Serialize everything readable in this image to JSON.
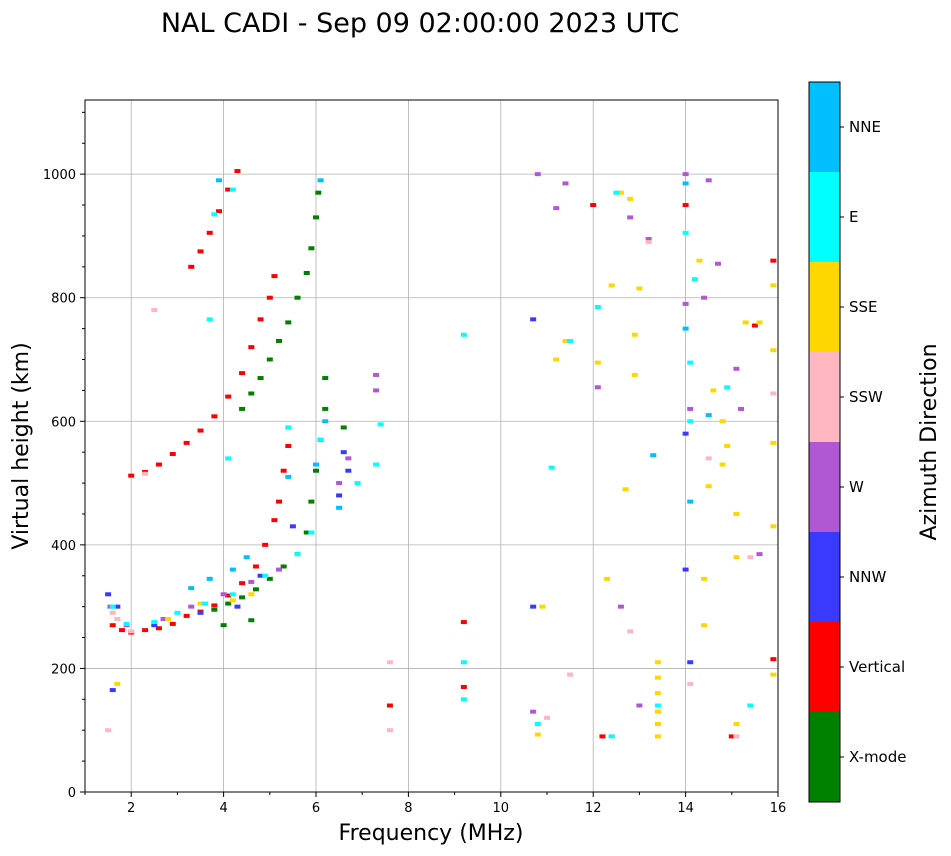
{
  "chart_data": {
    "type": "scatter",
    "title": "NAL CADI - Sep 09 02:00:00 2023 UTC",
    "xlabel": "Frequency (MHz)",
    "ylabel": "Virtual height (km)",
    "xlim": [
      1,
      16
    ],
    "ylim": [
      0,
      1120
    ],
    "xticks": [
      2,
      4,
      6,
      8,
      10,
      12,
      14,
      16
    ],
    "yticks": [
      0,
      200,
      400,
      600,
      800,
      1000
    ],
    "grid": true,
    "colorbar": {
      "label": "Azimuth Direction",
      "categories": [
        {
          "name": "X-mode",
          "color": "#008000"
        },
        {
          "name": "Vertical",
          "color": "#ff0000"
        },
        {
          "name": "NNW",
          "color": "#3a3aff"
        },
        {
          "name": "W",
          "color": "#b057d4"
        },
        {
          "name": "SSW",
          "color": "#ffb6c1"
        },
        {
          "name": "SSE",
          "color": "#ffd700"
        },
        {
          "name": "E",
          "color": "#00ffff"
        },
        {
          "name": "NNE",
          "color": "#00bfff"
        }
      ]
    },
    "series": [
      {
        "name": "Vertical",
        "points": [
          [
            1.6,
            270
          ],
          [
            1.8,
            262
          ],
          [
            2.0,
            258
          ],
          [
            2.3,
            262
          ],
          [
            2.6,
            265
          ],
          [
            2.9,
            272
          ],
          [
            3.2,
            285
          ],
          [
            3.5,
            292
          ],
          [
            3.8,
            302
          ],
          [
            4.1,
            318
          ],
          [
            4.4,
            338
          ],
          [
            4.7,
            365
          ],
          [
            4.9,
            400
          ],
          [
            5.1,
            440
          ],
          [
            5.2,
            470
          ],
          [
            5.3,
            520
          ],
          [
            5.4,
            560
          ],
          [
            2.0,
            512
          ],
          [
            2.3,
            518
          ],
          [
            2.6,
            530
          ],
          [
            2.9,
            547
          ],
          [
            3.2,
            565
          ],
          [
            3.5,
            585
          ],
          [
            3.8,
            608
          ],
          [
            4.1,
            640
          ],
          [
            4.4,
            678
          ],
          [
            4.6,
            720
          ],
          [
            4.8,
            765
          ],
          [
            5.0,
            800
          ],
          [
            5.1,
            835
          ],
          [
            3.3,
            850
          ],
          [
            3.5,
            875
          ],
          [
            3.7,
            905
          ],
          [
            3.9,
            940
          ],
          [
            4.1,
            975
          ],
          [
            4.3,
            1005
          ],
          [
            7.6,
            140
          ],
          [
            9.2,
            275
          ],
          [
            9.2,
            170
          ],
          [
            12.2,
            90
          ],
          [
            15.0,
            90
          ],
          [
            15.9,
            215
          ],
          [
            15.9,
            860
          ],
          [
            15.5,
            755
          ],
          [
            14.0,
            950
          ],
          [
            12.0,
            950
          ]
        ]
      },
      {
        "name": "X-mode",
        "points": [
          [
            3.8,
            295
          ],
          [
            4.1,
            305
          ],
          [
            4.4,
            315
          ],
          [
            4.7,
            328
          ],
          [
            5.0,
            345
          ],
          [
            5.3,
            365
          ],
          [
            5.6,
            385
          ],
          [
            5.8,
            420
          ],
          [
            5.9,
            470
          ],
          [
            6.0,
            520
          ],
          [
            6.1,
            570
          ],
          [
            6.2,
            620
          ],
          [
            6.2,
            670
          ],
          [
            4.4,
            620
          ],
          [
            4.6,
            645
          ],
          [
            4.8,
            670
          ],
          [
            5.0,
            700
          ],
          [
            5.2,
            730
          ],
          [
            5.4,
            760
          ],
          [
            5.6,
            800
          ],
          [
            5.8,
            840
          ],
          [
            5.9,
            880
          ],
          [
            6.0,
            930
          ],
          [
            6.05,
            970
          ],
          [
            4.0,
            270
          ],
          [
            4.6,
            278
          ],
          [
            6.6,
            590
          ]
        ]
      },
      {
        "name": "NNW",
        "points": [
          [
            1.5,
            320
          ],
          [
            1.6,
            165
          ],
          [
            1.7,
            300
          ],
          [
            2.5,
            270
          ],
          [
            3.5,
            290
          ],
          [
            4.3,
            300
          ],
          [
            4.8,
            350
          ],
          [
            5.5,
            430
          ],
          [
            6.5,
            480
          ],
          [
            6.7,
            520
          ],
          [
            6.6,
            550
          ],
          [
            10.7,
            300
          ],
          [
            10.7,
            765
          ],
          [
            14.0,
            580
          ],
          [
            14.1,
            210
          ],
          [
            14.0,
            360
          ]
        ]
      },
      {
        "name": "W",
        "points": [
          [
            1.55,
            300
          ],
          [
            1.9,
            270
          ],
          [
            2.7,
            280
          ],
          [
            3.3,
            300
          ],
          [
            4.0,
            320
          ],
          [
            4.6,
            340
          ],
          [
            5.2,
            360
          ],
          [
            6.5,
            500
          ],
          [
            6.7,
            540
          ],
          [
            7.3,
            675
          ],
          [
            7.3,
            650
          ],
          [
            10.7,
            130
          ],
          [
            10.8,
            1000
          ],
          [
            11.2,
            945
          ],
          [
            11.4,
            985
          ],
          [
            12.1,
            655
          ],
          [
            12.6,
            300
          ],
          [
            12.8,
            930
          ],
          [
            13.0,
            140
          ],
          [
            13.2,
            895
          ],
          [
            14.0,
            790
          ],
          [
            14.1,
            620
          ],
          [
            14.4,
            800
          ],
          [
            14.5,
            990
          ],
          [
            14.7,
            855
          ],
          [
            15.1,
            685
          ],
          [
            15.2,
            620
          ],
          [
            15.6,
            385
          ],
          [
            14.0,
            1000
          ]
        ]
      },
      {
        "name": "SSW",
        "points": [
          [
            1.5,
            100
          ],
          [
            1.6,
            290
          ],
          [
            1.7,
            280
          ],
          [
            2.0,
            260
          ],
          [
            2.3,
            515
          ],
          [
            2.5,
            780
          ],
          [
            7.6,
            210
          ],
          [
            7.6,
            100
          ],
          [
            11.0,
            120
          ],
          [
            11.5,
            190
          ],
          [
            12.4,
            90
          ],
          [
            12.8,
            260
          ],
          [
            13.2,
            890
          ],
          [
            14.1,
            175
          ],
          [
            14.5,
            540
          ],
          [
            15.1,
            90
          ],
          [
            15.4,
            380
          ],
          [
            15.9,
            645
          ]
        ]
      },
      {
        "name": "SSE",
        "points": [
          [
            1.7,
            175
          ],
          [
            2.8,
            280
          ],
          [
            3.5,
            305
          ],
          [
            4.2,
            310
          ],
          [
            4.6,
            320
          ],
          [
            10.9,
            300
          ],
          [
            10.8,
            93
          ],
          [
            11.2,
            700
          ],
          [
            11.4,
            730
          ],
          [
            12.1,
            695
          ],
          [
            12.3,
            345
          ],
          [
            12.4,
            820
          ],
          [
            12.6,
            970
          ],
          [
            12.7,
            490
          ],
          [
            12.8,
            960
          ],
          [
            13.0,
            815
          ],
          [
            12.9,
            740
          ],
          [
            12.9,
            675
          ],
          [
            13.3,
            545
          ],
          [
            13.4,
            90
          ],
          [
            13.4,
            110
          ],
          [
            13.4,
            130
          ],
          [
            13.4,
            160
          ],
          [
            13.4,
            185
          ],
          [
            13.4,
            210
          ],
          [
            14.3,
            860
          ],
          [
            14.4,
            270
          ],
          [
            14.4,
            345
          ],
          [
            14.5,
            495
          ],
          [
            14.6,
            650
          ],
          [
            14.8,
            530
          ],
          [
            14.8,
            600
          ],
          [
            14.9,
            560
          ],
          [
            15.1,
            450
          ],
          [
            15.1,
            380
          ],
          [
            15.1,
            110
          ],
          [
            15.3,
            760
          ],
          [
            15.6,
            760
          ],
          [
            15.9,
            430
          ],
          [
            15.9,
            565
          ],
          [
            15.9,
            715
          ],
          [
            15.9,
            820
          ],
          [
            15.9,
            190
          ]
        ]
      },
      {
        "name": "E",
        "points": [
          [
            1.6,
            300
          ],
          [
            1.9,
            272
          ],
          [
            2.5,
            275
          ],
          [
            3.0,
            290
          ],
          [
            3.6,
            305
          ],
          [
            4.2,
            320
          ],
          [
            4.9,
            350
          ],
          [
            5.6,
            385
          ],
          [
            5.9,
            420
          ],
          [
            4.2,
            975
          ],
          [
            3.8,
            935
          ],
          [
            3.7,
            765
          ],
          [
            4.1,
            540
          ],
          [
            5.4,
            590
          ],
          [
            6.1,
            570
          ],
          [
            6.9,
            500
          ],
          [
            7.3,
            530
          ],
          [
            7.4,
            595
          ],
          [
            9.2,
            740
          ],
          [
            9.2,
            210
          ],
          [
            9.2,
            150
          ],
          [
            10.8,
            110
          ],
          [
            11.1,
            525
          ],
          [
            11.5,
            730
          ],
          [
            12.1,
            785
          ],
          [
            12.5,
            970
          ],
          [
            13.4,
            140
          ],
          [
            14.0,
            905
          ],
          [
            14.1,
            695
          ],
          [
            14.1,
            600
          ],
          [
            14.2,
            830
          ],
          [
            14.9,
            655
          ],
          [
            15.4,
            140
          ],
          [
            12.4,
            90
          ]
        ]
      },
      {
        "name": "NNE",
        "points": [
          [
            3.3,
            330
          ],
          [
            3.7,
            345
          ],
          [
            4.2,
            360
          ],
          [
            4.5,
            380
          ],
          [
            3.9,
            990
          ],
          [
            5.4,
            510
          ],
          [
            6.0,
            530
          ],
          [
            6.2,
            600
          ],
          [
            6.5,
            460
          ],
          [
            6.1,
            990
          ],
          [
            13.3,
            545
          ],
          [
            14.0,
            985
          ],
          [
            14.0,
            750
          ],
          [
            14.5,
            610
          ],
          [
            14.1,
            470
          ]
        ]
      }
    ]
  }
}
